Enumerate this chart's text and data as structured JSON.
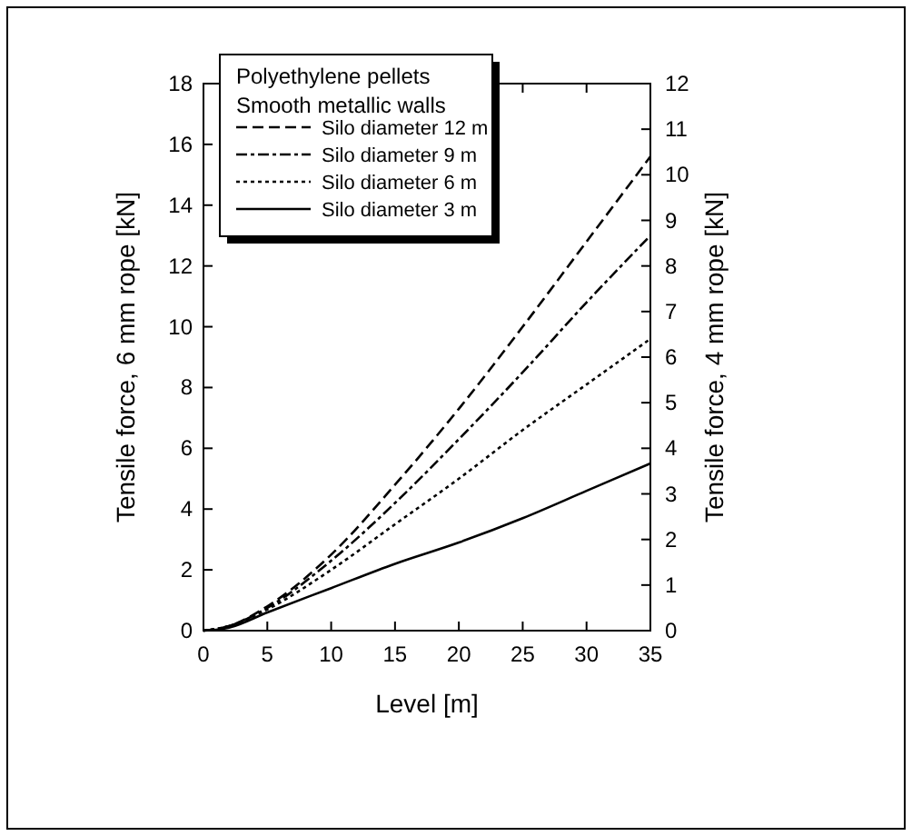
{
  "chart_data": {
    "type": "line",
    "xlabel": "Level [m]",
    "ylabel": "Tensile force, 6 mm rope [kN]",
    "y2label": "Tensile force, 4 mm rope [kN]",
    "legend_title": "Polyethylene pellets\nSmooth metallic walls",
    "legend": "top left",
    "grid": false,
    "x": [
      0,
      2,
      5,
      10,
      15,
      20,
      25,
      30,
      35
    ],
    "series": [
      {
        "name": "Silo diameter 12 m",
        "color": "#000000",
        "line_style": "dashed",
        "values": [
          0,
          0.15,
          0.8,
          2.5,
          4.8,
          7.3,
          10.0,
          12.8,
          15.6
        ]
      },
      {
        "name": "Silo diameter 9 m",
        "color": "#000000",
        "line_style": "dashdot",
        "values": [
          0,
          0.15,
          0.75,
          2.3,
          4.2,
          6.3,
          8.5,
          10.8,
          13.0
        ]
      },
      {
        "name": "Silo diameter 6 m",
        "color": "#000000",
        "line_style": "dotted",
        "values": [
          0,
          0.15,
          0.7,
          2.0,
          3.5,
          5.0,
          6.6,
          8.1,
          9.6
        ]
      },
      {
        "name": "Silo diameter 3 m",
        "color": "#000000",
        "line_style": "solid",
        "values": [
          0,
          0.1,
          0.6,
          1.4,
          2.2,
          2.9,
          3.7,
          4.6,
          5.5
        ]
      }
    ],
    "xlim": [
      0,
      35
    ],
    "xticks": [
      0,
      5,
      10,
      15,
      20,
      25,
      30,
      35
    ],
    "ylim": [
      0,
      18
    ],
    "yticks": [
      0,
      2,
      4,
      6,
      8,
      10,
      12,
      14,
      16,
      18
    ],
    "y2lim": [
      0,
      12
    ],
    "y2ticks": [
      0,
      1,
      2,
      3,
      4,
      5,
      6,
      7,
      8,
      9,
      10,
      11,
      12
    ]
  }
}
